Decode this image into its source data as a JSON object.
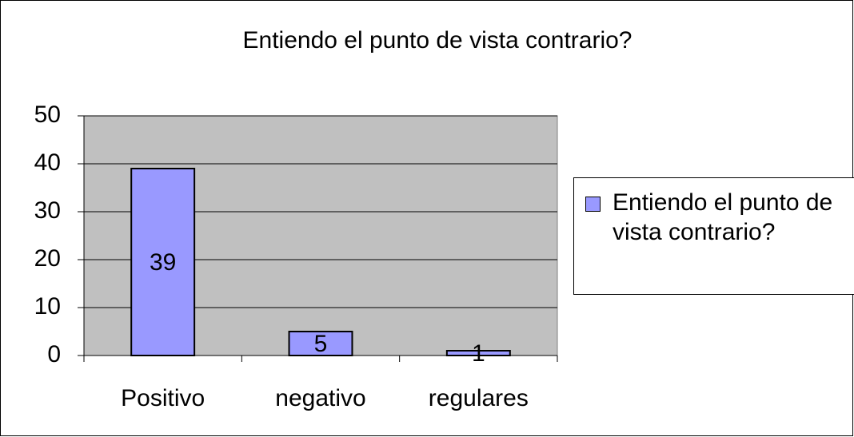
{
  "chart_data": {
    "type": "bar",
    "title": "Entiendo el punto de vista contrario?",
    "categories": [
      "Positivo",
      "negativo",
      "regulares"
    ],
    "series": [
      {
        "name": "Entiendo el punto de vista contrario?",
        "color": "#9999ff",
        "values": [
          39,
          5,
          1
        ]
      }
    ],
    "ylim": [
      0,
      50
    ],
    "yticks": [
      0,
      10,
      20,
      30,
      40,
      50
    ],
    "grid": true,
    "legend": "right"
  }
}
